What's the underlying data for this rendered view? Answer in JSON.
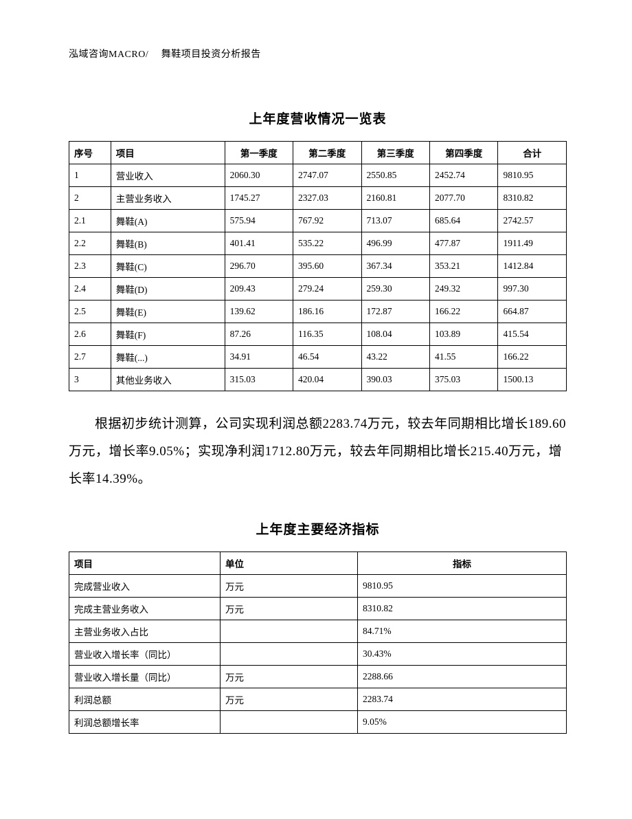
{
  "header": {
    "text": "泓域咨询MACRO/　 舞鞋项目投资分析报告"
  },
  "revenue_table": {
    "title": "上年度营收情况一览表",
    "columns": [
      "序号",
      "项目",
      "第一季度",
      "第二季度",
      "第三季度",
      "第四季度",
      "合计"
    ],
    "rows": [
      [
        "1",
        "营业收入",
        "2060.30",
        "2747.07",
        "2550.85",
        "2452.74",
        "9810.95"
      ],
      [
        "2",
        "主营业务收入",
        "1745.27",
        "2327.03",
        "2160.81",
        "2077.70",
        "8310.82"
      ],
      [
        "2.1",
        "舞鞋(A)",
        "575.94",
        "767.92",
        "713.07",
        "685.64",
        "2742.57"
      ],
      [
        "2.2",
        "舞鞋(B)",
        "401.41",
        "535.22",
        "496.99",
        "477.87",
        "1911.49"
      ],
      [
        "2.3",
        "舞鞋(C)",
        "296.70",
        "395.60",
        "367.34",
        "353.21",
        "1412.84"
      ],
      [
        "2.4",
        "舞鞋(D)",
        "209.43",
        "279.24",
        "259.30",
        "249.32",
        "997.30"
      ],
      [
        "2.5",
        "舞鞋(E)",
        "139.62",
        "186.16",
        "172.87",
        "166.22",
        "664.87"
      ],
      [
        "2.6",
        "舞鞋(F)",
        "87.26",
        "116.35",
        "108.04",
        "103.89",
        "415.54"
      ],
      [
        "2.7",
        "舞鞋(...)",
        "34.91",
        "46.54",
        "43.22",
        "41.55",
        "166.22"
      ],
      [
        "3",
        "其他业务收入",
        "315.03",
        "420.04",
        "390.03",
        "375.03",
        "1500.13"
      ]
    ]
  },
  "paragraph": {
    "text": "根据初步统计测算，公司实现利润总额2283.74万元，较去年同期相比增长189.60万元，增长率9.05%；实现净利润1712.80万元，较去年同期相比增长215.40万元，增长率14.39%。"
  },
  "indicator_table": {
    "title": "上年度主要经济指标",
    "columns": [
      "项目",
      "单位",
      "指标"
    ],
    "rows": [
      [
        "完成营业收入",
        "万元",
        "9810.95"
      ],
      [
        "完成主营业务收入",
        "万元",
        "8310.82"
      ],
      [
        "主营业务收入占比",
        "",
        "84.71%"
      ],
      [
        "营业收入增长率（同比）",
        "",
        "30.43%"
      ],
      [
        "营业收入增长量（同比）",
        "万元",
        "2288.66"
      ],
      [
        "利润总额",
        "万元",
        "2283.74"
      ],
      [
        "利润总额增长率",
        "",
        "9.05%"
      ]
    ]
  },
  "style": {
    "background_color": "#ffffff",
    "text_color": "#000000",
    "border_color": "#000000",
    "body_font_size": 19,
    "table_font_size": 13.5,
    "title_font_size": 19
  }
}
